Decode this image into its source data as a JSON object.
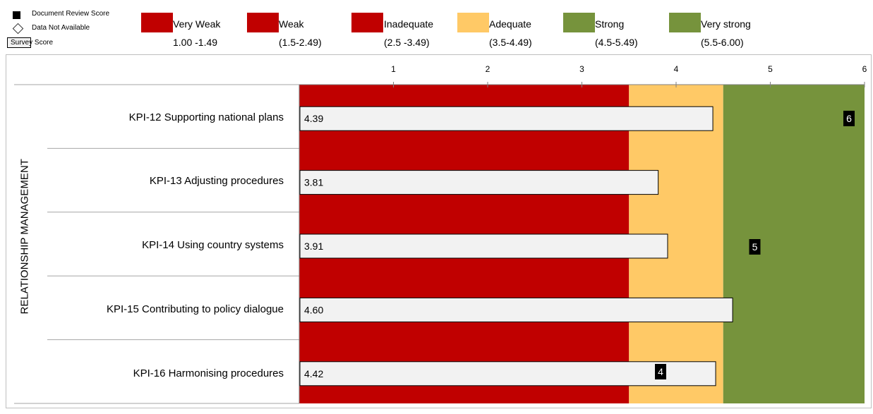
{
  "legend": {
    "markers": [
      {
        "label": "Document Review Score",
        "shape": "black-square"
      },
      {
        "label": "Data Not Available",
        "shape": "diamond"
      },
      {
        "label": "Survey Score",
        "shape": "box"
      }
    ],
    "categories": [
      {
        "label": "Very Weak",
        "range": "1.00 -1.49",
        "color": "#c00000"
      },
      {
        "label": "Weak",
        "range": "(1.5-2.49)",
        "color": "#c00000"
      },
      {
        "label": "Inadequate",
        "range": "(2.5 -3.49)",
        "color": "#c00000"
      },
      {
        "label": "Adequate",
        "range": "(3.5-4.49)",
        "color": "#ffc966"
      },
      {
        "label": "Strong",
        "range": "(4.5-5.49)",
        "color": "#76933c"
      },
      {
        "label": "Very strong",
        "range": "(5.5-6.00)",
        "color": "#76933c"
      }
    ]
  },
  "chart_data": {
    "type": "bar",
    "orientation": "horizontal",
    "ylabel": "RELATIONSHIP MANAGEMENT",
    "xlim": [
      0,
      6
    ],
    "xticks": [
      1,
      2,
      3,
      4,
      5,
      6
    ],
    "background_bands": [
      {
        "from": 0,
        "to": 3.5,
        "color": "#c00000"
      },
      {
        "from": 3.5,
        "to": 4.5,
        "color": "#ffc966"
      },
      {
        "from": 4.5,
        "to": 6,
        "color": "#76933c"
      }
    ],
    "categories": [
      "KPI-12 Supporting  national plans",
      "KPI-13 Adjusting  procedures",
      "KPI-14 Using country systems",
      "KPI-15 Contributing to policy dialogue",
      "KPI-16 Harmonising procedures"
    ],
    "series": [
      {
        "name": "Survey Score",
        "values": [
          4.39,
          3.81,
          3.91,
          4.6,
          4.42
        ],
        "labels": [
          "4.39",
          "3.81",
          "3.91",
          "4.60",
          "4.42"
        ]
      },
      {
        "name": "Document Review Score",
        "values": [
          6,
          null,
          5,
          null,
          4
        ]
      }
    ]
  }
}
